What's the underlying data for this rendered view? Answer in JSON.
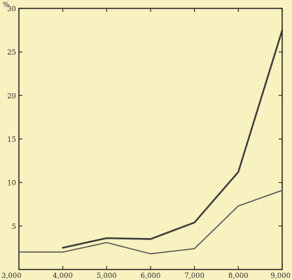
{
  "chart_data": {
    "type": "line",
    "title": "",
    "xlabel": "",
    "ylabel": "%",
    "x": [
      3000,
      4000,
      5000,
      6000,
      7000,
      8000,
      9000
    ],
    "xticks": [
      3000,
      4000,
      5000,
      6000,
      7000,
      8000,
      9000
    ],
    "xtick_labels": [
      "3,000",
      "4,000",
      "5,000",
      "6,000",
      "7,000",
      "8,000",
      "9,000"
    ],
    "yticks": [
      5,
      10,
      15,
      20,
      25,
      30
    ],
    "ytick_labels": [
      "5",
      "10",
      "15",
      "20",
      "25",
      "30"
    ],
    "xlim": [
      3000,
      9000
    ],
    "ylim": [
      0,
      30
    ],
    "grid": false,
    "series": [
      {
        "x": [
          4000,
          5000,
          6000,
          7000,
          8000,
          9000
        ],
        "values": [
          2.5,
          3.6,
          3.5,
          5.4,
          11.2,
          27.5
        ],
        "color": "#3a3a3a"
      },
      {
        "x": [
          3000,
          4000,
          5000,
          6000,
          7000,
          8000,
          9000
        ],
        "values": [
          2.0,
          2.0,
          3.1,
          1.8,
          2.4,
          7.3,
          9.1
        ],
        "color": "#555555"
      }
    ]
  }
}
